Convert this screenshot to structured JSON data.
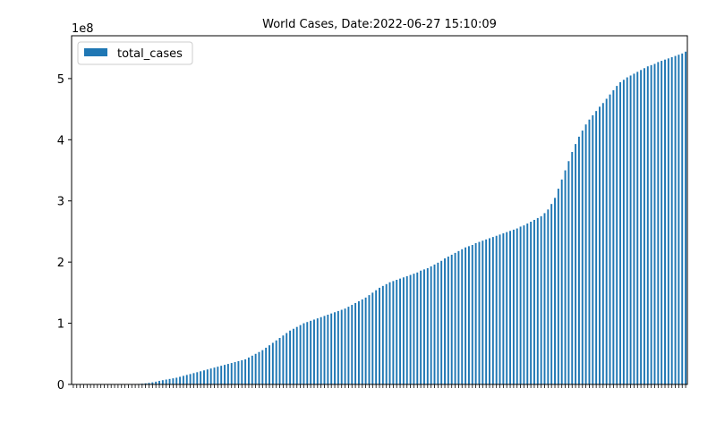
{
  "chart_data": {
    "type": "bar",
    "title": "World Cases, Date:2022-06-27 15:10:09",
    "xlabel": "",
    "ylabel": "",
    "y_offset_label": "1e8",
    "y_scale": 100000000,
    "ylim": [
      0,
      5.7
    ],
    "yticks": [
      0,
      1,
      2,
      3,
      4,
      5
    ],
    "legend": {
      "position": "top-left",
      "entries": [
        "total_cases"
      ]
    },
    "grid": false,
    "series": [
      {
        "name": "total_cases",
        "color": "#1f77b4",
        "values": [
          0,
          0,
          0,
          0,
          0,
          0,
          0,
          0,
          0,
          0,
          0,
          0,
          0,
          0,
          0,
          0.001,
          0.002,
          0.003,
          0.005,
          0.008,
          0.012,
          0.018,
          0.025,
          0.034,
          0.045,
          0.058,
          0.07,
          0.08,
          0.09,
          0.1,
          0.11,
          0.125,
          0.14,
          0.155,
          0.17,
          0.185,
          0.2,
          0.215,
          0.23,
          0.245,
          0.26,
          0.275,
          0.29,
          0.305,
          0.32,
          0.335,
          0.35,
          0.365,
          0.38,
          0.395,
          0.41,
          0.44,
          0.47,
          0.5,
          0.53,
          0.56,
          0.6,
          0.64,
          0.68,
          0.72,
          0.76,
          0.8,
          0.84,
          0.88,
          0.91,
          0.94,
          0.97,
          1.0,
          1.02,
          1.04,
          1.06,
          1.08,
          1.1,
          1.12,
          1.14,
          1.16,
          1.18,
          1.2,
          1.22,
          1.24,
          1.27,
          1.3,
          1.33,
          1.36,
          1.39,
          1.42,
          1.46,
          1.5,
          1.54,
          1.58,
          1.61,
          1.64,
          1.67,
          1.69,
          1.71,
          1.73,
          1.75,
          1.77,
          1.79,
          1.81,
          1.83,
          1.86,
          1.88,
          1.9,
          1.93,
          1.96,
          1.99,
          2.02,
          2.06,
          2.09,
          2.12,
          2.15,
          2.18,
          2.21,
          2.24,
          2.26,
          2.28,
          2.31,
          2.33,
          2.35,
          2.37,
          2.39,
          2.41,
          2.43,
          2.45,
          2.47,
          2.49,
          2.51,
          2.53,
          2.55,
          2.58,
          2.6,
          2.63,
          2.66,
          2.69,
          2.72,
          2.75,
          2.8,
          2.86,
          2.95,
          3.05,
          3.2,
          3.35,
          3.5,
          3.65,
          3.8,
          3.93,
          4.05,
          4.15,
          4.25,
          4.33,
          4.4,
          4.47,
          4.54,
          4.6,
          4.67,
          4.74,
          4.81,
          4.88,
          4.94,
          4.98,
          5.02,
          5.05,
          5.08,
          5.11,
          5.14,
          5.17,
          5.2,
          5.22,
          5.24,
          5.27,
          5.29,
          5.31,
          5.33,
          5.35,
          5.37,
          5.39,
          5.41,
          5.44
        ]
      }
    ]
  },
  "colors": {
    "bar": "#1f77b4",
    "axis": "#000000",
    "background": "#ffffff"
  }
}
